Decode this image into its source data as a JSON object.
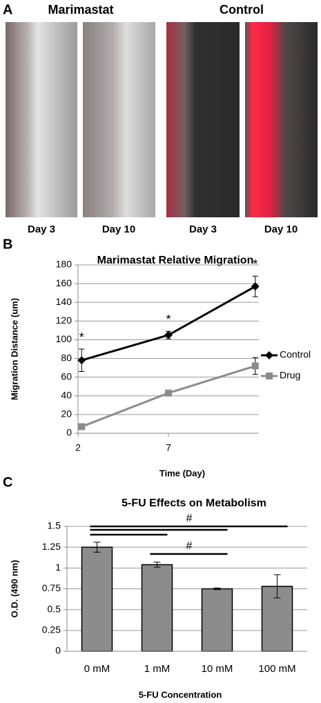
{
  "panel_a": {
    "label": "A",
    "groups": [
      {
        "title": "Marimastat",
        "days": [
          "Day 3",
          "Day 10"
        ]
      },
      {
        "title": "Control",
        "days": [
          "Day 3",
          "Day 10"
        ]
      }
    ]
  },
  "chart_data": [
    {
      "type": "line",
      "panel_label": "B",
      "title": "Marimastat Relative Migration",
      "x_label": "Time (Day)",
      "y_label": "Migration Distance (um)",
      "x": [
        2.2,
        7,
        11.8
      ],
      "xlim": [
        2,
        12
      ],
      "xticks": [
        2,
        7
      ],
      "ylim": [
        0,
        180
      ],
      "yticks": [
        0,
        20,
        40,
        60,
        80,
        100,
        120,
        140,
        160,
        180
      ],
      "grid": true,
      "legend": "right",
      "series": [
        {
          "name": "Control",
          "color": "#000000",
          "values": [
            78,
            105,
            157
          ],
          "errors": [
            12,
            4,
            11
          ]
        },
        {
          "name": "Drug",
          "color": "#8c8c8c",
          "values": [
            7,
            43,
            72
          ],
          "errors": [
            1,
            2,
            9
          ]
        }
      ],
      "annotations": [
        "*",
        "*",
        "*"
      ]
    },
    {
      "type": "bar",
      "panel_label": "C",
      "title": "5-FU Effects on Metabolism",
      "x_label": "5-FU Concentration",
      "y_label": "O.D. (490 nm)",
      "categories": [
        "0 mM",
        "1 mM",
        "10 mM",
        "100 mM"
      ],
      "values": [
        1.25,
        1.04,
        0.75,
        0.78
      ],
      "errors": [
        0.06,
        0.03,
        0.01,
        0.14
      ],
      "color": "#8c8c8c",
      "ylim": [
        0,
        1.5
      ],
      "yticks": [
        0,
        0.25,
        0.5,
        0.75,
        1,
        1.25,
        1.5
      ],
      "grid": true,
      "brackets": [
        {
          "from": "0 mM",
          "to": "100 mM",
          "label": "#"
        },
        {
          "from": "0 mM",
          "to": "10 mM"
        },
        {
          "from": "0 mM",
          "to": "1 mM"
        },
        {
          "from": "1 mM",
          "to": "10 mM",
          "label": "#"
        }
      ]
    }
  ]
}
